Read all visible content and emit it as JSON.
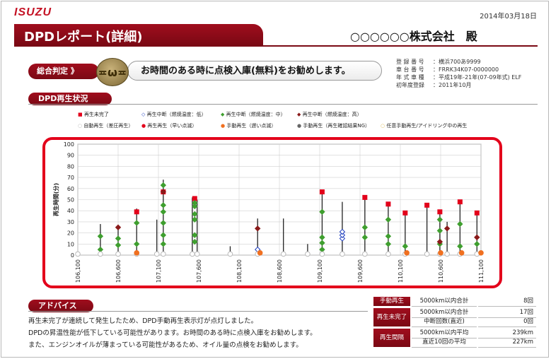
{
  "header": {
    "logo": "ISUZU",
    "date": "2014年03月18日",
    "title": "DPDレポート(詳細)",
    "company": "○○○○○○株式会社　殿"
  },
  "judgement": {
    "label": "総合判定 》",
    "face": "≖ω≖",
    "message": "お時間のある時に点検入庫(無料)をお勧めします。"
  },
  "vehicle_info": [
    {
      "key": "登 録 番 号",
      "value": "：横浜700あ9999"
    },
    {
      "key": "車 台 番 号",
      "value": "：FRRK34K07-0000000"
    },
    {
      "key": "年 式 車 種",
      "value": "：平成19年-21年(07-09年式) ELF"
    },
    {
      "key": "初年度登録",
      "value": "：2011年10月"
    }
  ],
  "sections": {
    "dpd_status": "DPD再生状況",
    "advice": "アドバイス"
  },
  "legend": [
    {
      "label": "再生未完了",
      "color": "#e3001b",
      "shape": "square"
    },
    {
      "label": "再生中断（燃焼温度：低）",
      "color": "#1f3fbf",
      "shape": "diamond-open"
    },
    {
      "label": "再生中断（燃焼温度：中）",
      "color": "#3f9f2f",
      "shape": "diamond"
    },
    {
      "label": "再生中断（燃焼温度：高）",
      "color": "#8a1a1a",
      "shape": "diamond"
    },
    {
      "label": "自動再生（差圧再生）",
      "color": "#bbbbbb",
      "shape": "circle-open"
    },
    {
      "label": "再生再生（早い点滅）",
      "color": "#e3001b",
      "shape": "circle"
    },
    {
      "label": "手動再生（遅い点滅）",
      "color": "#f07020",
      "shape": "circle"
    },
    {
      "label": "手動再生（再生確認結果NG）",
      "color": "#666666",
      "shape": "circle"
    },
    {
      "label": "任意手動再生/アイドリング中の再生",
      "color": "#e0c060",
      "shape": "circle-open"
    }
  ],
  "chart_data": {
    "type": "scatter",
    "ylabel": "再生時間(分)",
    "ylim": [
      0,
      100
    ],
    "yticks": [
      0,
      10,
      20,
      30,
      40,
      50,
      60,
      70,
      80,
      90,
      100
    ],
    "xlim": [
      106100,
      111100
    ],
    "xticks": [
      "106,100",
      "106,600",
      "107,100",
      "107,600",
      "108,100",
      "108,600",
      "109,100",
      "109,600",
      "110,100",
      "110,600",
      "111,100"
    ],
    "xtick_values": [
      106100,
      106600,
      107100,
      107600,
      108100,
      108600,
      109100,
      109600,
      110100,
      110600,
      111100
    ],
    "bars": [
      {
        "x": 106380,
        "y": 28
      },
      {
        "x": 106600,
        "y": 27
      },
      {
        "x": 106830,
        "y": 42
      },
      {
        "x": 107080,
        "y": 32
      },
      {
        "x": 107160,
        "y": 68
      },
      {
        "x": 107520,
        "y": 52
      },
      {
        "x": 107580,
        "y": 50
      },
      {
        "x": 107990,
        "y": 8
      },
      {
        "x": 108330,
        "y": 33
      },
      {
        "x": 108650,
        "y": 33
      },
      {
        "x": 108950,
        "y": 10
      },
      {
        "x": 109130,
        "y": 58
      },
      {
        "x": 109380,
        "y": 48
      },
      {
        "x": 109660,
        "y": 52
      },
      {
        "x": 109950,
        "y": 46
      },
      {
        "x": 110160,
        "y": 38
      },
      {
        "x": 110430,
        "y": 46
      },
      {
        "x": 110590,
        "y": 40
      },
      {
        "x": 110680,
        "y": 30
      },
      {
        "x": 110840,
        "y": 49
      },
      {
        "x": 111050,
        "y": 38
      }
    ],
    "series": [
      {
        "name": "再生未完了",
        "points": [
          [
            106830,
            39
          ],
          [
            107160,
            57
          ],
          [
            107550,
            51
          ],
          [
            109130,
            57
          ],
          [
            109660,
            52
          ],
          [
            109950,
            46
          ],
          [
            110160,
            38
          ],
          [
            110430,
            45
          ],
          [
            110590,
            39
          ],
          [
            110840,
            48
          ],
          [
            111050,
            38
          ]
        ]
      },
      {
        "name": "再生中断（燃焼温度：低）",
        "points": [
          [
            108330,
            5
          ],
          [
            109380,
            15
          ],
          [
            109380,
            18
          ],
          [
            109380,
            21
          ]
        ]
      },
      {
        "name": "再生中断（燃焼温度：中）",
        "points": [
          [
            106380,
            5
          ],
          [
            106380,
            17
          ],
          [
            106600,
            9
          ],
          [
            106600,
            15
          ],
          [
            106830,
            10
          ],
          [
            106830,
            29
          ],
          [
            107160,
            10
          ],
          [
            107160,
            18
          ],
          [
            107160,
            29
          ],
          [
            107160,
            39
          ],
          [
            107160,
            45
          ],
          [
            107160,
            63
          ],
          [
            107550,
            12
          ],
          [
            107550,
            18
          ],
          [
            107550,
            32
          ],
          [
            107550,
            37
          ],
          [
            107550,
            44
          ],
          [
            107550,
            47
          ],
          [
            109130,
            5
          ],
          [
            109130,
            11
          ],
          [
            109130,
            16
          ],
          [
            109130,
            39
          ],
          [
            109660,
            16
          ],
          [
            109660,
            25
          ],
          [
            109950,
            10
          ],
          [
            109950,
            17
          ],
          [
            109950,
            32
          ],
          [
            110160,
            8
          ],
          [
            110590,
            10
          ],
          [
            110590,
            22
          ],
          [
            110590,
            32
          ],
          [
            110840,
            8
          ],
          [
            110840,
            28
          ],
          [
            111050,
            10
          ]
        ]
      },
      {
        "name": "再生中断（燃焼温度：高）",
        "points": [
          [
            106600,
            25
          ],
          [
            107160,
            57
          ],
          [
            108330,
            24
          ],
          [
            110590,
            12
          ],
          [
            110680,
            24
          ],
          [
            111050,
            16
          ]
        ]
      },
      {
        "name": "自動再生（差圧再生）",
        "points": [
          [
            106100,
            1
          ],
          [
            106380,
            1
          ],
          [
            106600,
            1
          ],
          [
            106830,
            1
          ],
          [
            107080,
            1
          ],
          [
            107160,
            1
          ],
          [
            107520,
            1
          ],
          [
            107580,
            1
          ],
          [
            107990,
            1
          ],
          [
            108330,
            1
          ],
          [
            108650,
            1
          ],
          [
            108950,
            1
          ],
          [
            109130,
            1
          ],
          [
            109380,
            1
          ],
          [
            109660,
            1
          ],
          [
            109950,
            1
          ],
          [
            110160,
            1
          ],
          [
            110430,
            1
          ],
          [
            110590,
            1
          ],
          [
            110680,
            1
          ],
          [
            110840,
            1
          ],
          [
            111050,
            1
          ]
        ]
      },
      {
        "name": "手動再生（遅い点滅）",
        "points": [
          [
            106830,
            2
          ],
          [
            108360,
            2
          ],
          [
            110180,
            2
          ],
          [
            110600,
            2
          ],
          [
            110860,
            2
          ],
          [
            111100,
            2
          ]
        ]
      }
    ]
  },
  "advice": [
    "再生未完了が連続して発生したため、DPD手動再生表示灯が点灯しました。",
    "DPDの昇温性能が低下している可能性があります。お時間のある時に点検入庫をお勧めします。",
    "また、エンジンオイルが薄まっている可能性があるため、オイル量の点検をお勧めします。"
  ],
  "stats": {
    "manual": {
      "label": "手動再生",
      "sub": "5000km以内合計",
      "value": "8回"
    },
    "incomplete": {
      "label": "再生未完了",
      "sub1": "5000km以内合計",
      "sub2": "中断回数(直近)",
      "value1": "17回",
      "value2": "0回"
    },
    "interval": {
      "label": "再生間隔",
      "sub1": "5000km以内平均",
      "sub2": "直近10回の平均",
      "value1": "239km",
      "value2": "227km"
    }
  }
}
